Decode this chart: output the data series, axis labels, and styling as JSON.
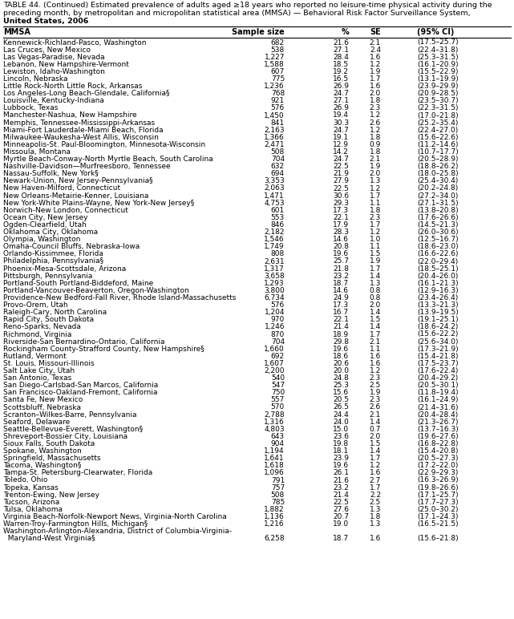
{
  "title_line1": "TABLE 44. (Continued) Estimated prevalence of adults aged ≥18 years who reported no leisure-time physical activity during the",
  "title_line2": "preceding month, by metropolitan and micropolitan statistical area (MMSA) — Behavioral Risk Factor Surveillance System,",
  "title_line3": "United States, 2006",
  "col_headers": [
    "MMSA",
    "Sample size",
    "%",
    "SE",
    "(95% CI)"
  ],
  "col_x_left": [
    4,
    355,
    435,
    475,
    520
  ],
  "col_align": [
    "left",
    "right",
    "right",
    "right",
    "left"
  ],
  "rows": [
    [
      "Kennewick-Richland-Pasco, Washington",
      "682",
      "21.6",
      "2.1",
      "(17.5–25.7)"
    ],
    [
      "Las Cruces, New Mexico",
      "538",
      "27.1",
      "2.4",
      "(22.4–31.8)"
    ],
    [
      "Las Vegas-Paradise, Nevada",
      "1,227",
      "28.4",
      "1.6",
      "(25.3–31.5)"
    ],
    [
      "Lebanon, New Hampshire-Vermont",
      "1,588",
      "18.5",
      "1.2",
      "(16.1–20.9)"
    ],
    [
      "Lewiston, Idaho-Washington",
      "607",
      "19.2",
      "1.9",
      "(15.5–22.9)"
    ],
    [
      "Lincoln, Nebraska",
      "775",
      "16.5",
      "1.7",
      "(13.1–19.9)"
    ],
    [
      "Little Rock-North Little Rock, Arkansas",
      "1,236",
      "26.9",
      "1.6",
      "(23.9–29.9)"
    ],
    [
      "Los Angeles-Long Beach-Glendale, California§",
      "768",
      "24.7",
      "2.0",
      "(20.9–28.5)"
    ],
    [
      "Louisville, Kentucky-Indiana",
      "921",
      "27.1",
      "1.8",
      "(23.5–30.7)"
    ],
    [
      "Lubbock, Texas",
      "576",
      "26.9",
      "2.3",
      "(22.3–31.5)"
    ],
    [
      "Manchester-Nashua, New Hampshire",
      "1,450",
      "19.4",
      "1.2",
      "(17.0–21.8)"
    ],
    [
      "Memphis, Tennessee-Mississippi-Arkansas",
      "841",
      "30.3",
      "2.6",
      "(25.2–35.4)"
    ],
    [
      "Miami-Fort Lauderdale-Miami Beach, Florida",
      "2,163",
      "24.7",
      "1.2",
      "(22.4–27.0)"
    ],
    [
      "Milwaukee-Waukesha-West Allis, Wisconsin",
      "1,366",
      "19.1",
      "1.8",
      "(15.6–22.6)"
    ],
    [
      "Minneapolis-St. Paul-Bloomington, Minnesota-Wisconsin",
      "2,471",
      "12.9",
      "0.9",
      "(11.2–14.6)"
    ],
    [
      "Missoula, Montana",
      "508",
      "14.2",
      "1.8",
      "(10.7–17.7)"
    ],
    [
      "Myrtle Beach-Conway-North Myrtle Beach, South Carolina",
      "704",
      "24.7",
      "2.1",
      "(20.5–28.9)"
    ],
    [
      "Nashville-Davidson—Murfreesboro, Tennessee",
      "632",
      "22.5",
      "1.9",
      "(18.8–26.2)"
    ],
    [
      "Nassau-Suffolk, New York§",
      "694",
      "21.9",
      "2.0",
      "(18.0–25.8)"
    ],
    [
      "Newark-Union, New Jersey-Pennsylvania§",
      "3,353",
      "27.9",
      "1.3",
      "(25.4–30.4)"
    ],
    [
      "New Haven-Milford, Connecticut",
      "2,063",
      "22.5",
      "1.2",
      "(20.2–24.8)"
    ],
    [
      "New Orleans-Metairie-Kenner, Louisiana",
      "1,471",
      "30.6",
      "1.7",
      "(27.2–34.0)"
    ],
    [
      "New York-White Plains-Wayne, New York-New Jersey§",
      "4,753",
      "29.3",
      "1.1",
      "(27.1–31.5)"
    ],
    [
      "Norwich-New London, Connecticut",
      "601",
      "17.3",
      "1.8",
      "(13.8–20.8)"
    ],
    [
      "Ocean City, New Jersey",
      "553",
      "22.1",
      "2.3",
      "(17.6–26.6)"
    ],
    [
      "Ogden-Clearfield, Utah",
      "846",
      "17.9",
      "1.7",
      "(14.5–21.3)"
    ],
    [
      "Oklahoma City, Oklahoma",
      "2,182",
      "28.3",
      "1.2",
      "(26.0–30.6)"
    ],
    [
      "Olympia, Washington",
      "1,546",
      "14.6",
      "1.0",
      "(12.5–16.7)"
    ],
    [
      "Omaha-Council Bluffs, Nebraska-Iowa",
      "1,749",
      "20.8",
      "1.1",
      "(18.6–23.0)"
    ],
    [
      "Orlando-Kissimmee, Florida",
      "808",
      "19.6",
      "1.5",
      "(16.6–22.6)"
    ],
    [
      "Philadelphia, Pennsylvania§",
      "2,631",
      "25.7",
      "1.9",
      "(22.0–29.4)"
    ],
    [
      "Phoenix-Mesa-Scottsdale, Arizona",
      "1,317",
      "21.8",
      "1.7",
      "(18.5–25.1)"
    ],
    [
      "Pittsburgh, Pennsylvania",
      "3,658",
      "23.2",
      "1.4",
      "(20.4–26.0)"
    ],
    [
      "Portland-South Portland-Biddeford, Maine",
      "1,293",
      "18.7",
      "1.3",
      "(16.1–21.3)"
    ],
    [
      "Portland-Vancouver-Beaverton, Oregon-Washington",
      "3,800",
      "14.6",
      "0.8",
      "(12.9–16.3)"
    ],
    [
      "Providence-New Bedford-Fall River, Rhode Island-Massachusetts",
      "6,734",
      "24.9",
      "0.8",
      "(23.4–26.4)"
    ],
    [
      "Provo-Orem, Utah",
      "576",
      "17.3",
      "2.0",
      "(13.3–21.3)"
    ],
    [
      "Raleigh-Cary, North Carolina",
      "1,204",
      "16.7",
      "1.4",
      "(13.9–19.5)"
    ],
    [
      "Rapid City, South Dakota",
      "970",
      "22.1",
      "1.5",
      "(19.1–25.1)"
    ],
    [
      "Reno-Sparks, Nevada",
      "1,246",
      "21.4",
      "1.4",
      "(18.6–24.2)"
    ],
    [
      "Richmond, Virginia",
      "870",
      "18.9",
      "1.7",
      "(15.6–22.2)"
    ],
    [
      "Riverside-San Bernardino-Ontario, California",
      "704",
      "29.8",
      "2.1",
      "(25.6–34.0)"
    ],
    [
      "Rockingham County-Strafford County, New Hampshire§",
      "1,660",
      "19.6",
      "1.1",
      "(17.3–21.9)"
    ],
    [
      "Rutland, Vermont",
      "692",
      "18.6",
      "1.6",
      "(15.4–21.8)"
    ],
    [
      "St. Louis, Missouri-Illinois",
      "1,607",
      "20.6",
      "1.6",
      "(17.5–23.7)"
    ],
    [
      "Salt Lake City, Utah",
      "2,200",
      "20.0",
      "1.2",
      "(17.6–22.4)"
    ],
    [
      "San Antonio, Texas",
      "540",
      "24.8",
      "2.3",
      "(20.4–29.2)"
    ],
    [
      "San Diego-Carlsbad-San Marcos, California",
      "547",
      "25.3",
      "2.5",
      "(20.5–30.1)"
    ],
    [
      "San Francisco-Oakland-Fremont, California",
      "750",
      "15.6",
      "1.9",
      "(11.8–19.4)"
    ],
    [
      "Santa Fe, New Mexico",
      "557",
      "20.5",
      "2.3",
      "(16.1–24.9)"
    ],
    [
      "Scottsbluff, Nebraska",
      "570",
      "26.5",
      "2.6",
      "(21.4–31.6)"
    ],
    [
      "Scranton–Wilkes-Barre, Pennsylvania",
      "2,788",
      "24.4",
      "2.1",
      "(20.4–28.4)"
    ],
    [
      "Seaford, Delaware",
      "1,316",
      "24.0",
      "1.4",
      "(21.3–26.7)"
    ],
    [
      "Seattle-Bellevue-Everett, Washington§",
      "4,803",
      "15.0",
      "0.7",
      "(13.7–16.3)"
    ],
    [
      "Shreveport-Bossier City, Louisiana",
      "643",
      "23.6",
      "2.0",
      "(19.6–27.6)"
    ],
    [
      "Sioux Falls, South Dakota",
      "904",
      "19.8",
      "1.5",
      "(16.8–22.8)"
    ],
    [
      "Spokane, Washington",
      "1,194",
      "18.1",
      "1.4",
      "(15.4–20.8)"
    ],
    [
      "Springfield, Massachusetts",
      "1,641",
      "23.9",
      "1.7",
      "(20.5–27.3)"
    ],
    [
      "Tacoma, Washington§",
      "1,618",
      "19.6",
      "1.2",
      "(17.2–22.0)"
    ],
    [
      "Tampa-St. Petersburg-Clearwater, Florida",
      "1,096",
      "26.1",
      "1.6",
      "(22.9–29.3)"
    ],
    [
      "Toledo, Ohio",
      "791",
      "21.6",
      "2.7",
      "(16.3–26.9)"
    ],
    [
      "Topeka, Kansas",
      "757",
      "23.2",
      "1.7",
      "(19.8–26.6)"
    ],
    [
      "Trenton-Ewing, New Jersey",
      "508",
      "21.4",
      "2.2",
      "(17.1–25.7)"
    ],
    [
      "Tucson, Arizona",
      "785",
      "22.5",
      "2.5",
      "(17.7–27.3)"
    ],
    [
      "Tulsa, Oklahoma",
      "1,882",
      "27.6",
      "1.3",
      "(25.0–30.2)"
    ],
    [
      "Virginia Beach-Norfolk-Newport News, Virginia-North Carolina",
      "1,136",
      "20.7",
      "1.8",
      "(17.1–24.3)"
    ],
    [
      "Warren-Troy-Farmington Hills, Michigan§",
      "1,216",
      "19.0",
      "1.3",
      "(16.5–21.5)"
    ],
    [
      "Washington-Arlington-Alexandria, District of Columbia-Virginia-",
      "",
      "",
      "",
      ""
    ],
    [
      "  Maryland-West Virginia§",
      "6,258",
      "18.7",
      "1.6",
      "(15.6–21.8)"
    ]
  ],
  "bg_color": "#ffffff",
  "text_color": "#000000",
  "title_fontsize": 6.8,
  "header_fontsize": 7.0,
  "row_fontsize": 6.5
}
